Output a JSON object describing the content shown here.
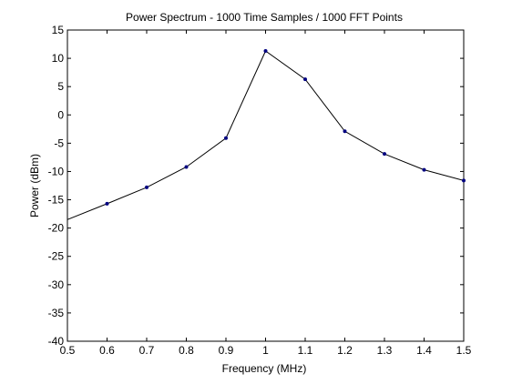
{
  "chart_data": {
    "type": "line",
    "title": "Power Spectrum - 1000 Time Samples / 1000 FFT Points",
    "xlabel": "Frequency (MHz)",
    "ylabel": "Power (dBm)",
    "xlim": [
      0.5,
      1.5
    ],
    "ylim": [
      -40,
      15
    ],
    "xticks": [
      "0.5",
      "0.6",
      "0.7",
      "0.8",
      "0.9",
      "1",
      "1.1",
      "1.2",
      "1.3",
      "1.4",
      "1.5"
    ],
    "yticks": [
      "15",
      "10",
      "5",
      "0",
      "-5",
      "-10",
      "-15",
      "-20",
      "-25",
      "-30",
      "-35",
      "-40"
    ],
    "grid": false,
    "series": [
      {
        "x": [
          0.5,
          0.6,
          0.7,
          0.8,
          0.9,
          1.0,
          1.1,
          1.2,
          1.3,
          1.4,
          1.5
        ],
        "y": [
          -18.5,
          -15.7,
          -12.8,
          -9.2,
          -4.1,
          11.3,
          6.3,
          -2.9,
          -6.9,
          -9.7,
          -11.6
        ],
        "markers": [
          false,
          true,
          true,
          true,
          true,
          true,
          true,
          true,
          true,
          true,
          true
        ]
      }
    ],
    "line_color": "#000000",
    "marker_color": "#000080"
  }
}
